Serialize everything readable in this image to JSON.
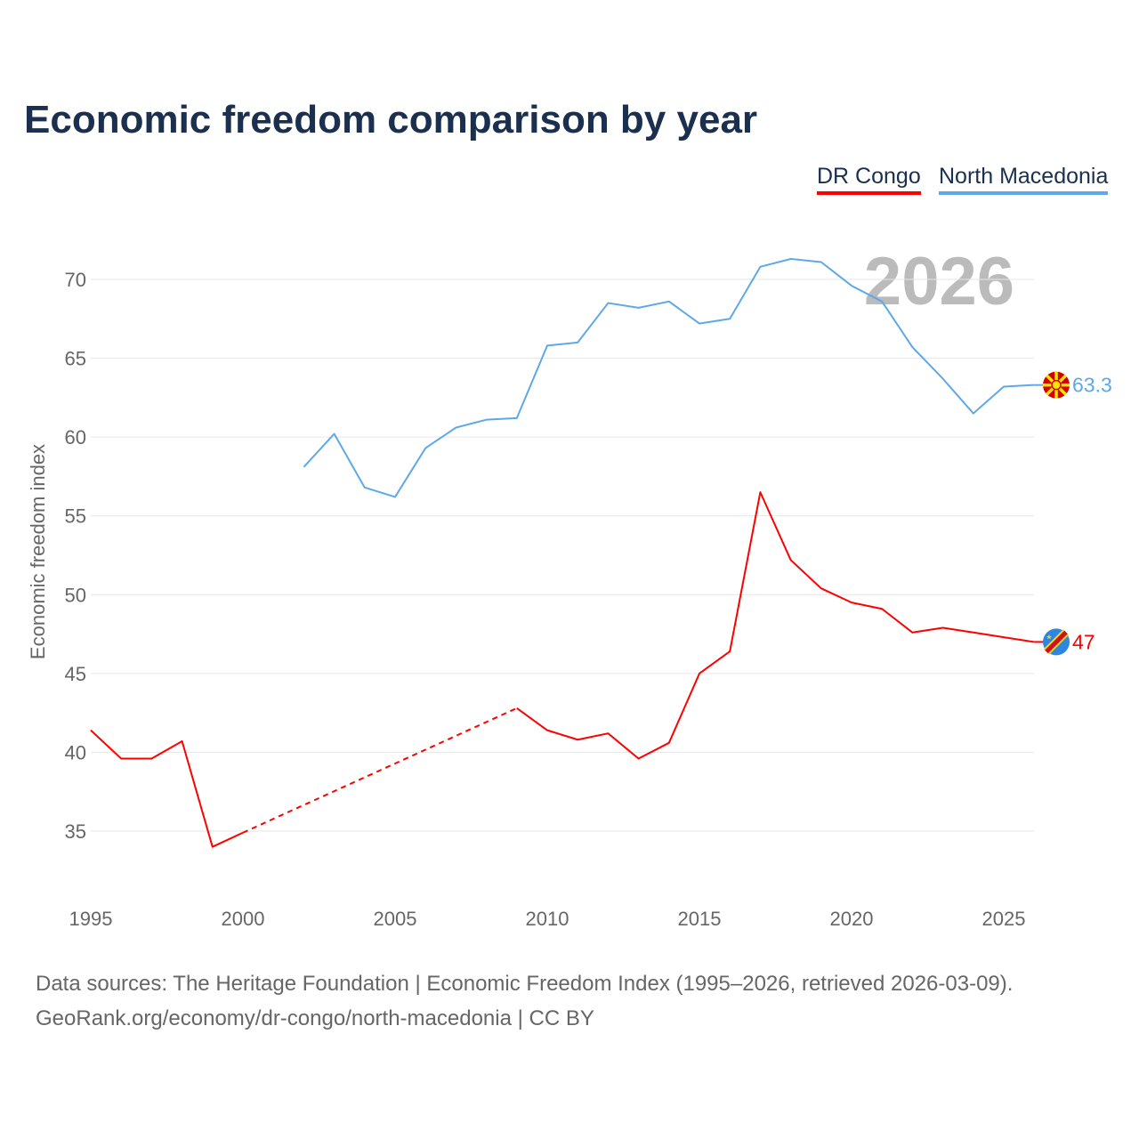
{
  "chart_data": {
    "type": "line",
    "title": "Economic freedom comparison by year",
    "xlabel": "",
    "ylabel": "Economic freedom index",
    "xlim": [
      1995,
      2026
    ],
    "ylim": [
      31,
      73
    ],
    "xticks": [
      1995,
      2000,
      2005,
      2010,
      2015,
      2020,
      2025
    ],
    "yticks": [
      35,
      40,
      45,
      50,
      55,
      60,
      65,
      70
    ],
    "grid": "horizontal",
    "legend_position": "top-right",
    "year_watermark": "2026",
    "x": [
      1995,
      1996,
      1997,
      1998,
      1999,
      2000,
      2001,
      2002,
      2003,
      2004,
      2005,
      2006,
      2007,
      2008,
      2009,
      2010,
      2011,
      2012,
      2013,
      2014,
      2015,
      2016,
      2017,
      2018,
      2019,
      2020,
      2021,
      2022,
      2023,
      2024,
      2025,
      2026
    ],
    "series": [
      {
        "name": "DR Congo",
        "color": "#ff0000",
        "end_label": "47",
        "flag": "dr-congo-flag",
        "values": [
          41.4,
          39.6,
          39.6,
          40.7,
          34.0,
          34.9,
          null,
          null,
          null,
          null,
          null,
          null,
          null,
          null,
          42.8,
          41.4,
          40.8,
          41.2,
          39.6,
          40.6,
          45.0,
          46.4,
          56.5,
          52.2,
          50.4,
          49.5,
          49.1,
          47.6,
          47.9,
          47.6,
          47.3,
          47.0
        ]
      },
      {
        "name": "North Macedonia",
        "color": "#5fa8e8",
        "end_label": "63.3",
        "flag": "north-macedonia-flag",
        "values": [
          null,
          null,
          null,
          null,
          null,
          null,
          null,
          58.1,
          60.2,
          56.8,
          56.2,
          59.3,
          60.6,
          61.1,
          61.2,
          65.8,
          66.0,
          68.5,
          68.2,
          68.6,
          67.2,
          67.5,
          70.8,
          71.3,
          71.1,
          69.6,
          68.6,
          65.7,
          63.7,
          61.5,
          63.2,
          63.3
        ]
      }
    ]
  },
  "footer": {
    "line1": "Data sources: The Heritage Foundation | Economic Freedom Index (1995–2026, retrieved 2026-03-09).",
    "line2": "GeoRank.org/economy/dr-congo/north-macedonia | CC BY"
  }
}
